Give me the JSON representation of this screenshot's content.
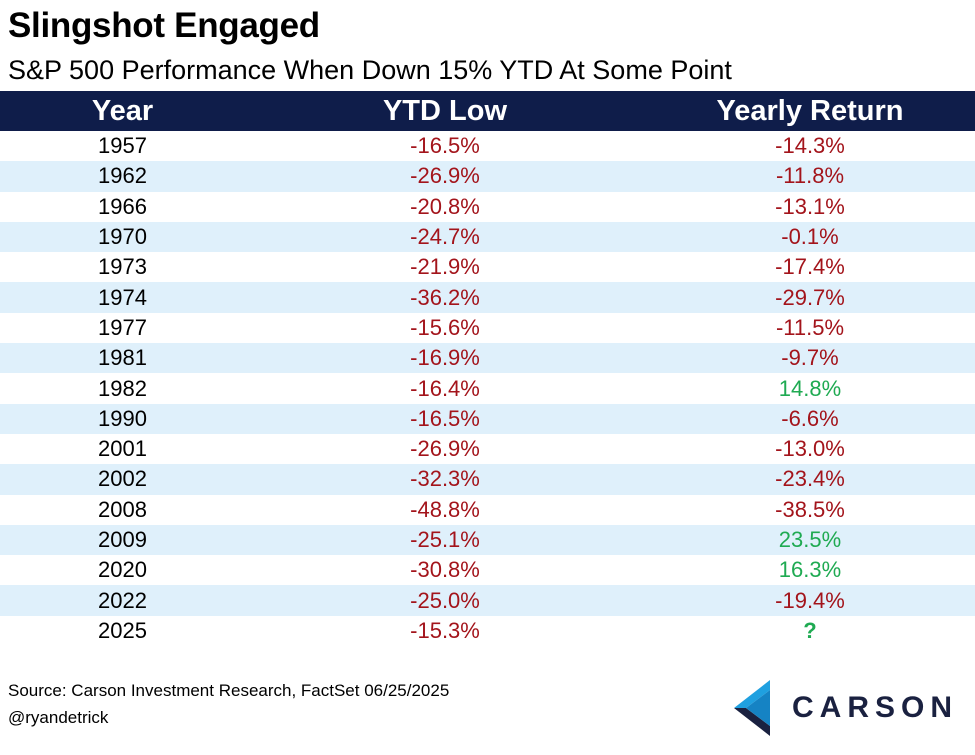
{
  "title": "Slingshot Engaged",
  "subtitle": "S&P 500 Performance When Down 15% YTD At Some Point",
  "table": {
    "headers": [
      "Year",
      "YTD Low",
      "Yearly Return"
    ],
    "rows": [
      {
        "year": "1957",
        "ytd_low": "-16.5%",
        "yearly_return": "-14.3%",
        "return_type": "neg"
      },
      {
        "year": "1962",
        "ytd_low": "-26.9%",
        "yearly_return": "-11.8%",
        "return_type": "neg"
      },
      {
        "year": "1966",
        "ytd_low": "-20.8%",
        "yearly_return": "-13.1%",
        "return_type": "neg"
      },
      {
        "year": "1970",
        "ytd_low": "-24.7%",
        "yearly_return": "-0.1%",
        "return_type": "neg"
      },
      {
        "year": "1973",
        "ytd_low": "-21.9%",
        "yearly_return": "-17.4%",
        "return_type": "neg"
      },
      {
        "year": "1974",
        "ytd_low": "-36.2%",
        "yearly_return": "-29.7%",
        "return_type": "neg"
      },
      {
        "year": "1977",
        "ytd_low": "-15.6%",
        "yearly_return": "-11.5%",
        "return_type": "neg"
      },
      {
        "year": "1981",
        "ytd_low": "-16.9%",
        "yearly_return": "-9.7%",
        "return_type": "neg"
      },
      {
        "year": "1982",
        "ytd_low": "-16.4%",
        "yearly_return": "14.8%",
        "return_type": "pos"
      },
      {
        "year": "1990",
        "ytd_low": "-16.5%",
        "yearly_return": "-6.6%",
        "return_type": "neg"
      },
      {
        "year": "2001",
        "ytd_low": "-26.9%",
        "yearly_return": "-13.0%",
        "return_type": "neg"
      },
      {
        "year": "2002",
        "ytd_low": "-32.3%",
        "yearly_return": "-23.4%",
        "return_type": "neg"
      },
      {
        "year": "2008",
        "ytd_low": "-48.8%",
        "yearly_return": "-38.5%",
        "return_type": "neg"
      },
      {
        "year": "2009",
        "ytd_low": "-25.1%",
        "yearly_return": "23.5%",
        "return_type": "pos"
      },
      {
        "year": "2020",
        "ytd_low": "-30.8%",
        "yearly_return": "16.3%",
        "return_type": "pos"
      },
      {
        "year": "2022",
        "ytd_low": "-25.0%",
        "yearly_return": "-19.4%",
        "return_type": "neg"
      },
      {
        "year": "2025",
        "ytd_low": "-15.3%",
        "yearly_return": "?",
        "return_type": "unk"
      }
    ]
  },
  "footer": {
    "source": "Source: Carson Investment Research, FactSet 06/25/2025",
    "handle": "@ryandetrick"
  },
  "logo": {
    "text": "CARSON",
    "icon": "carson-chevron-icon"
  },
  "colors": {
    "header_bg": "#0f1d4a",
    "stripe": "#dff0fb",
    "negative": "#a3141b",
    "positive": "#1faa52"
  }
}
